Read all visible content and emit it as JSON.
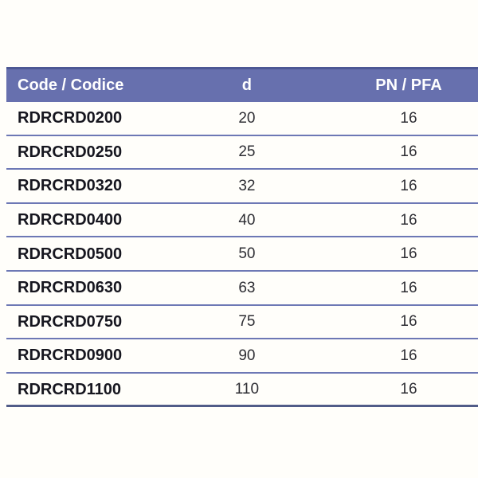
{
  "colors": {
    "header_bg": "#6770ae",
    "header_top_edge": "#4d5894",
    "header_text": "#ffffff",
    "row_separator": "#6d78b5",
    "bottom_border": "#515c88",
    "code_text": "#16161f",
    "value_text": "#2d2d33",
    "page_bg": "#fffefa"
  },
  "table": {
    "columns": [
      {
        "key": "code",
        "label": "Code / Codice",
        "align": "left"
      },
      {
        "key": "d",
        "label": "d",
        "align": "center"
      },
      {
        "key": "pn",
        "label": "PN / PFA",
        "align": "center"
      }
    ],
    "rows": [
      {
        "code": "RDRCRD0200",
        "d": "20",
        "pn": "16"
      },
      {
        "code": "RDRCRD0250",
        "d": "25",
        "pn": "16"
      },
      {
        "code": "RDRCRD0320",
        "d": "32",
        "pn": "16"
      },
      {
        "code": "RDRCRD0400",
        "d": "40",
        "pn": "16"
      },
      {
        "code": "RDRCRD0500",
        "d": "50",
        "pn": "16"
      },
      {
        "code": "RDRCRD0630",
        "d": "63",
        "pn": "16"
      },
      {
        "code": "RDRCRD0750",
        "d": "75",
        "pn": "16"
      },
      {
        "code": "RDRCRD0900",
        "d": "90",
        "pn": "16"
      },
      {
        "code": "RDRCRD1100",
        "d": "110",
        "pn": "16"
      }
    ]
  }
}
